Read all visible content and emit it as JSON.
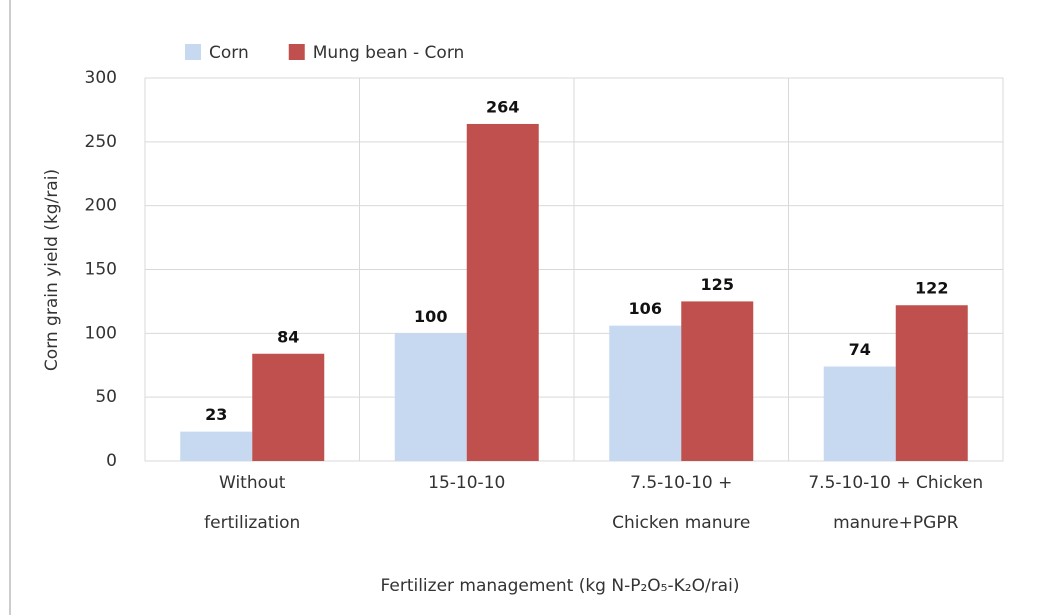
{
  "chart_data": {
    "type": "bar",
    "categories": [
      [
        "Without",
        "fertilization"
      ],
      [
        "15-10-10"
      ],
      [
        "7.5-10-10 +",
        "Chicken manure"
      ],
      [
        "7.5-10-10 + Chicken",
        "manure+PGPR"
      ]
    ],
    "series": [
      {
        "name": "Corn",
        "color": "#c6d9f1",
        "values": [
          23,
          100,
          106,
          74
        ]
      },
      {
        "name": "Mung bean - Corn",
        "color": "#c0504d",
        "values": [
          84,
          264,
          125,
          122
        ]
      }
    ],
    "x_label": "Fertilizer management (kg N-P₂O₅-K₂O/rai)",
    "y_label": "Corn grain yield (kg/rai)",
    "ylim": [
      0,
      300
    ],
    "yticks": [
      0,
      50,
      100,
      150,
      200,
      250,
      300
    ],
    "grid": true
  }
}
